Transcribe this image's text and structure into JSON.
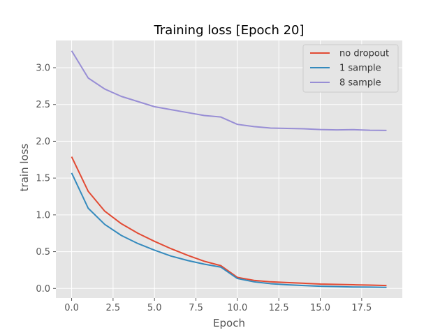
{
  "chart_data": {
    "type": "line",
    "title": "Training loss [Epoch 20]",
    "xlabel": "Epoch",
    "ylabel": "train loss",
    "xlim": [
      -0.95,
      19.95
    ],
    "ylim": [
      -0.13,
      3.37
    ],
    "xticks": [
      0.0,
      2.5,
      5.0,
      7.5,
      10.0,
      12.5,
      15.0,
      17.5
    ],
    "xtick_labels": [
      "0.0",
      "2.5",
      "5.0",
      "7.5",
      "10.0",
      "12.5",
      "15.0",
      "17.5"
    ],
    "yticks": [
      0.0,
      0.5,
      1.0,
      1.5,
      2.0,
      2.5,
      3.0
    ],
    "ytick_labels": [
      "0.0",
      "0.5",
      "1.0",
      "1.5",
      "2.0",
      "2.5",
      "3.0"
    ],
    "grid": true,
    "legend_position": "top-right",
    "x": [
      0,
      1,
      2,
      3,
      4,
      5,
      6,
      7,
      8,
      9,
      10,
      11,
      12,
      13,
      14,
      15,
      16,
      17,
      18,
      19
    ],
    "series": [
      {
        "name": "no dropout",
        "color": "#e24a33",
        "values": [
          1.79,
          1.32,
          1.05,
          0.88,
          0.75,
          0.64,
          0.54,
          0.45,
          0.37,
          0.31,
          0.15,
          0.11,
          0.09,
          0.08,
          0.07,
          0.06,
          0.055,
          0.05,
          0.045,
          0.04
        ]
      },
      {
        "name": "1 sample",
        "color": "#348abd",
        "values": [
          1.57,
          1.09,
          0.87,
          0.72,
          0.61,
          0.52,
          0.44,
          0.38,
          0.33,
          0.29,
          0.135,
          0.09,
          0.065,
          0.05,
          0.04,
          0.03,
          0.025,
          0.02,
          0.018,
          0.015
        ]
      },
      {
        "name": "8 sample",
        "color": "#988ed5",
        "values": [
          3.23,
          2.86,
          2.71,
          2.61,
          2.54,
          2.47,
          2.43,
          2.39,
          2.35,
          2.33,
          2.23,
          2.2,
          2.18,
          2.175,
          2.17,
          2.16,
          2.155,
          2.158,
          2.15,
          2.148
        ]
      }
    ]
  }
}
